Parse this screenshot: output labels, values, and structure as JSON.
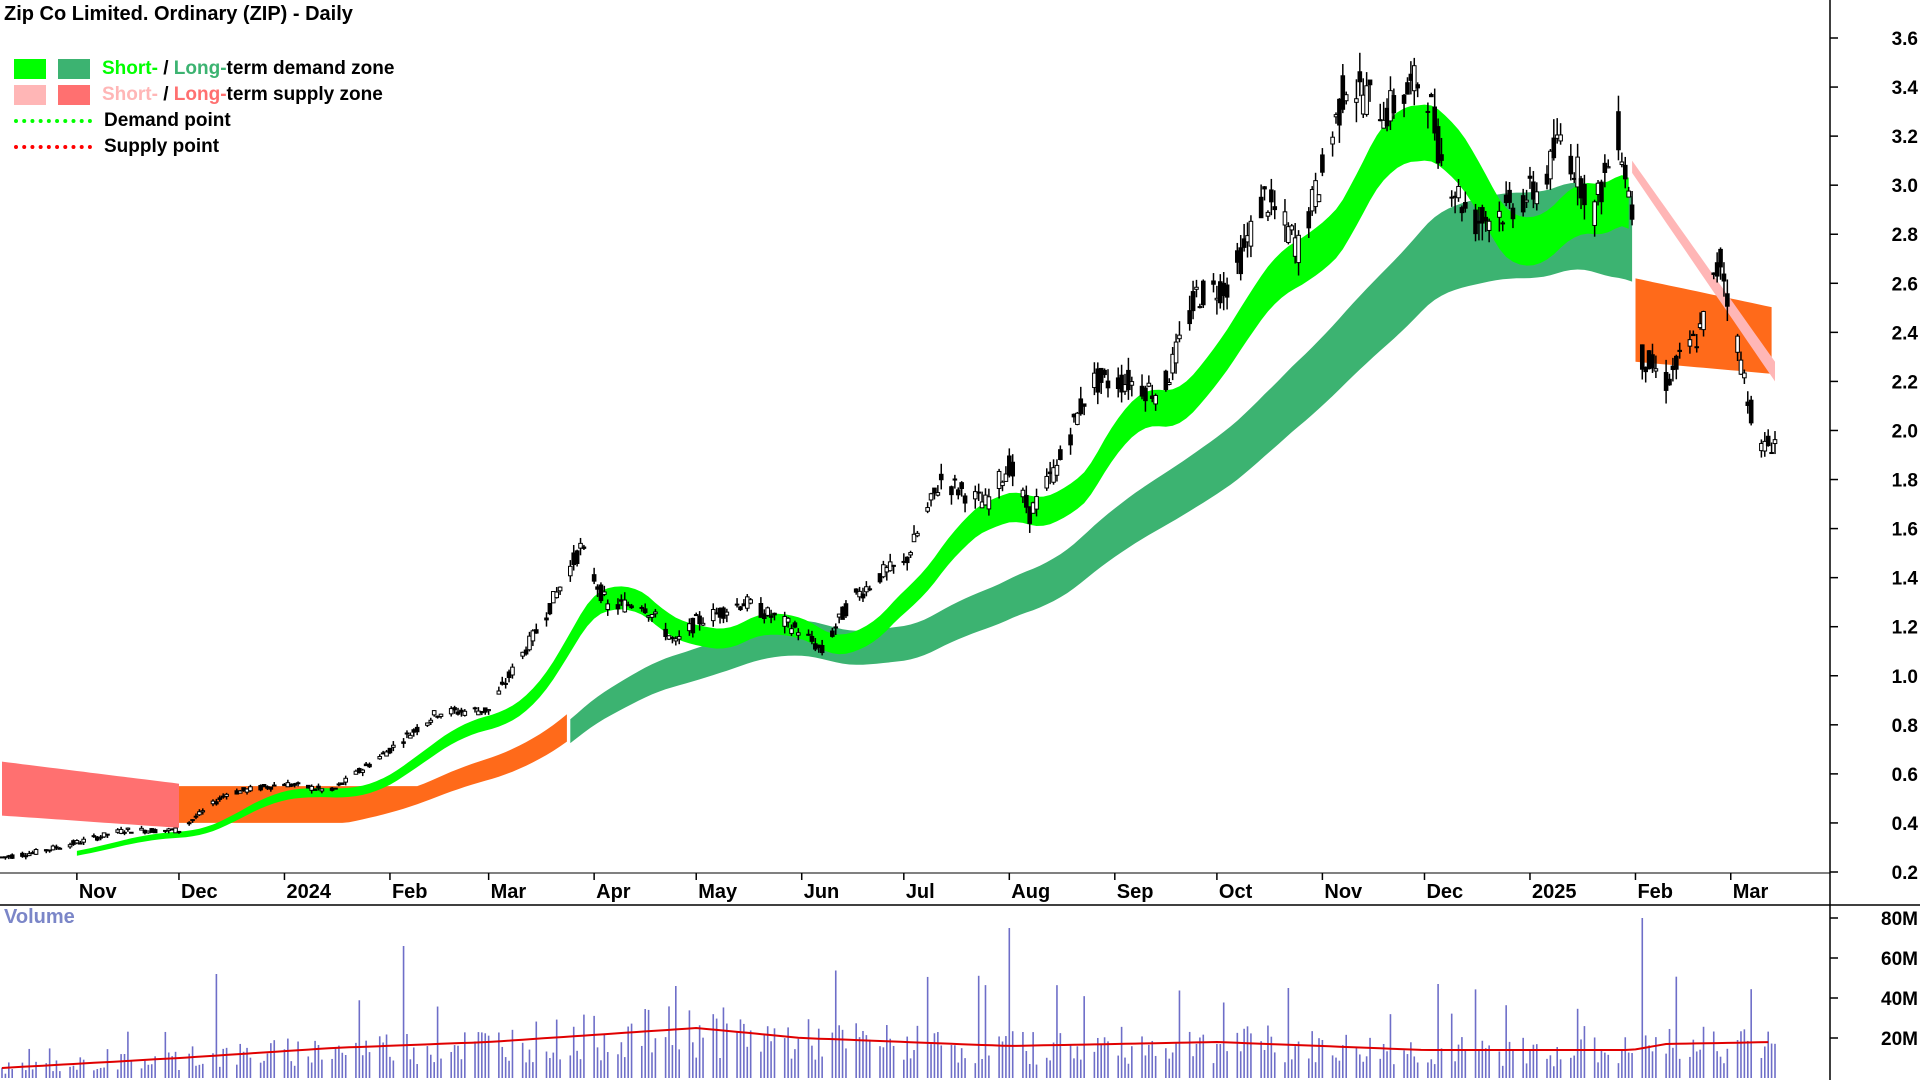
{
  "title": "Zip Co Limited. Ordinary (ZIP) - Daily",
  "legend": {
    "demand_zone": {
      "short": "Short-",
      "sep": " / ",
      "long": "Long-",
      "rest": "term demand zone"
    },
    "supply_zone": {
      "short": "Short-",
      "sep": " / ",
      "long": "Long-",
      "rest": "term supply zone"
    },
    "demand_point": "Demand point",
    "supply_point": "Supply point"
  },
  "volume_label": "Volume",
  "colors": {
    "short_demand": "#00ff00",
    "long_demand": "#3cb371",
    "short_supply": "#ffb6b6",
    "long_supply": "#ff7070",
    "orange_zone": "#ff6a1a",
    "volume_bar": "#6e6ec8",
    "volume_avg": "#e00000",
    "candle": "#000000"
  },
  "chart_data": [
    {
      "type": "candlestick",
      "title": "Zip Co Limited. Ordinary (ZIP) - Daily",
      "xlabel": "",
      "ylabel": "",
      "ylim": [
        0.2,
        3.6
      ],
      "y_ticks": [
        "3.6",
        "3.4",
        "3.2",
        "3.0",
        "2.8",
        "2.6",
        "2.4",
        "2.2",
        "2.0",
        "1.8",
        "1.6",
        "1.4",
        "1.2",
        "1.0",
        "0.8",
        "0.6",
        "0.4",
        "0.2"
      ],
      "x_ticks": [
        "Nov",
        "Dec",
        "2024",
        "Feb",
        "Mar",
        "Apr",
        "May",
        "Jun",
        "Jul",
        "Aug",
        "Sep",
        "Oct",
        "Nov",
        "Dec",
        "2025",
        "Feb",
        "Mar"
      ],
      "x_tick_dates": [
        "2023-11-01",
        "2023-12-01",
        "2024-01-01",
        "2024-02-01",
        "2024-03-01",
        "2024-04-01",
        "2024-05-01",
        "2024-06-01",
        "2024-07-01",
        "2024-08-01",
        "2024-09-01",
        "2024-10-01",
        "2024-11-01",
        "2024-12-01",
        "2025-01-01",
        "2025-02-01",
        "2025-03-01"
      ],
      "x_range": [
        "2023-10-10",
        "2025-03-14"
      ],
      "grid": false,
      "legend_position": "top-left",
      "price_series": [
        [
          "2023-10-10",
          0.26
        ],
        [
          "2023-10-20",
          0.28
        ],
        [
          "2023-11-01",
          0.32
        ],
        [
          "2023-11-15",
          0.37
        ],
        [
          "2023-12-01",
          0.37
        ],
        [
          "2023-12-15",
          0.52
        ],
        [
          "2024-01-01",
          0.56
        ],
        [
          "2024-01-15",
          0.53
        ],
        [
          "2024-02-01",
          0.7
        ],
        [
          "2024-02-15",
          0.85
        ],
        [
          "2024-03-01",
          0.86
        ],
        [
          "2024-03-15",
          1.18
        ],
        [
          "2024-03-28",
          1.52
        ],
        [
          "2024-04-05",
          1.28
        ],
        [
          "2024-04-15",
          1.3
        ],
        [
          "2024-04-25",
          1.13
        ],
        [
          "2024-05-01",
          1.22
        ],
        [
          "2024-05-15",
          1.3
        ],
        [
          "2024-06-01",
          1.18
        ],
        [
          "2024-06-07",
          1.1
        ],
        [
          "2024-06-15",
          1.3
        ],
        [
          "2024-06-25",
          1.42
        ],
        [
          "2024-07-01",
          1.45
        ],
        [
          "2024-07-12",
          1.8
        ],
        [
          "2024-07-25",
          1.7
        ],
        [
          "2024-08-01",
          1.86
        ],
        [
          "2024-08-07",
          1.66
        ],
        [
          "2024-08-15",
          1.85
        ],
        [
          "2024-08-25",
          2.2
        ],
        [
          "2024-09-05",
          2.2
        ],
        [
          "2024-09-15",
          2.15
        ],
        [
          "2024-09-25",
          2.55
        ],
        [
          "2024-10-05",
          2.6
        ],
        [
          "2024-10-15",
          2.95
        ],
        [
          "2024-10-25",
          2.75
        ],
        [
          "2024-11-01",
          3.05
        ],
        [
          "2024-11-08",
          3.42
        ],
        [
          "2024-11-20",
          3.3
        ],
        [
          "2024-12-01",
          3.45
        ],
        [
          "2024-12-06",
          3.1
        ],
        [
          "2024-12-15",
          2.85
        ],
        [
          "2024-12-25",
          2.9
        ],
        [
          "2025-01-05",
          3.0
        ],
        [
          "2025-01-10",
          3.2
        ],
        [
          "2025-01-20",
          2.9
        ],
        [
          "2025-01-27",
          3.22
        ],
        [
          "2025-01-31",
          2.9
        ],
        [
          "2025-02-03",
          2.3
        ],
        [
          "2025-02-10",
          2.2
        ],
        [
          "2025-02-20",
          2.4
        ],
        [
          "2025-02-26",
          2.7
        ],
        [
          "2025-03-03",
          2.35
        ],
        [
          "2025-03-07",
          2.08
        ],
        [
          "2025-03-10",
          1.92
        ],
        [
          "2025-03-14",
          1.96
        ]
      ],
      "zones": {
        "short_term_demand": {
          "color": "short_demand",
          "from": "2023-11-01",
          "to": "2025-01-31"
        },
        "long_term_demand": {
          "color": "long_demand",
          "from": "2024-03-25",
          "to": "2025-02-01"
        },
        "short_term_supply": {
          "color": "short_supply",
          "from": "2025-01-31",
          "to": "2025-03-14"
        },
        "long_term_supply": {
          "color": "long_supply",
          "from": "2023-10-10",
          "to": "2023-12-01"
        },
        "supply_overlap": {
          "color": "orange_zone",
          "from": "2025-02-01",
          "to": "2025-03-14"
        }
      }
    },
    {
      "type": "bar",
      "title": "Volume",
      "ylim": [
        0,
        80000000
      ],
      "y_ticks": [
        "80M",
        "60M",
        "40M",
        "20M"
      ],
      "average_level": [
        [
          "2023-10-10",
          5000000
        ],
        [
          "2023-12-01",
          10000000
        ],
        [
          "2024-01-15",
          15000000
        ],
        [
          "2024-03-01",
          18000000
        ],
        [
          "2024-05-01",
          25000000
        ],
        [
          "2024-06-01",
          20000000
        ],
        [
          "2024-08-01",
          16000000
        ],
        [
          "2024-10-01",
          18000000
        ],
        [
          "2024-12-01",
          14000000
        ],
        [
          "2025-01-31",
          14000000
        ],
        [
          "2025-02-10",
          17000000
        ],
        [
          "2025-03-14",
          18000000
        ]
      ],
      "notable_spikes": [
        [
          "2023-12-12",
          52000000
        ],
        [
          "2024-02-05",
          66000000
        ],
        [
          "2024-04-25",
          46000000
        ],
        [
          "2024-08-01",
          75000000
        ],
        [
          "2024-10-22",
          45000000
        ],
        [
          "2024-12-05",
          47000000
        ],
        [
          "2025-02-03",
          80000000
        ]
      ]
    }
  ]
}
